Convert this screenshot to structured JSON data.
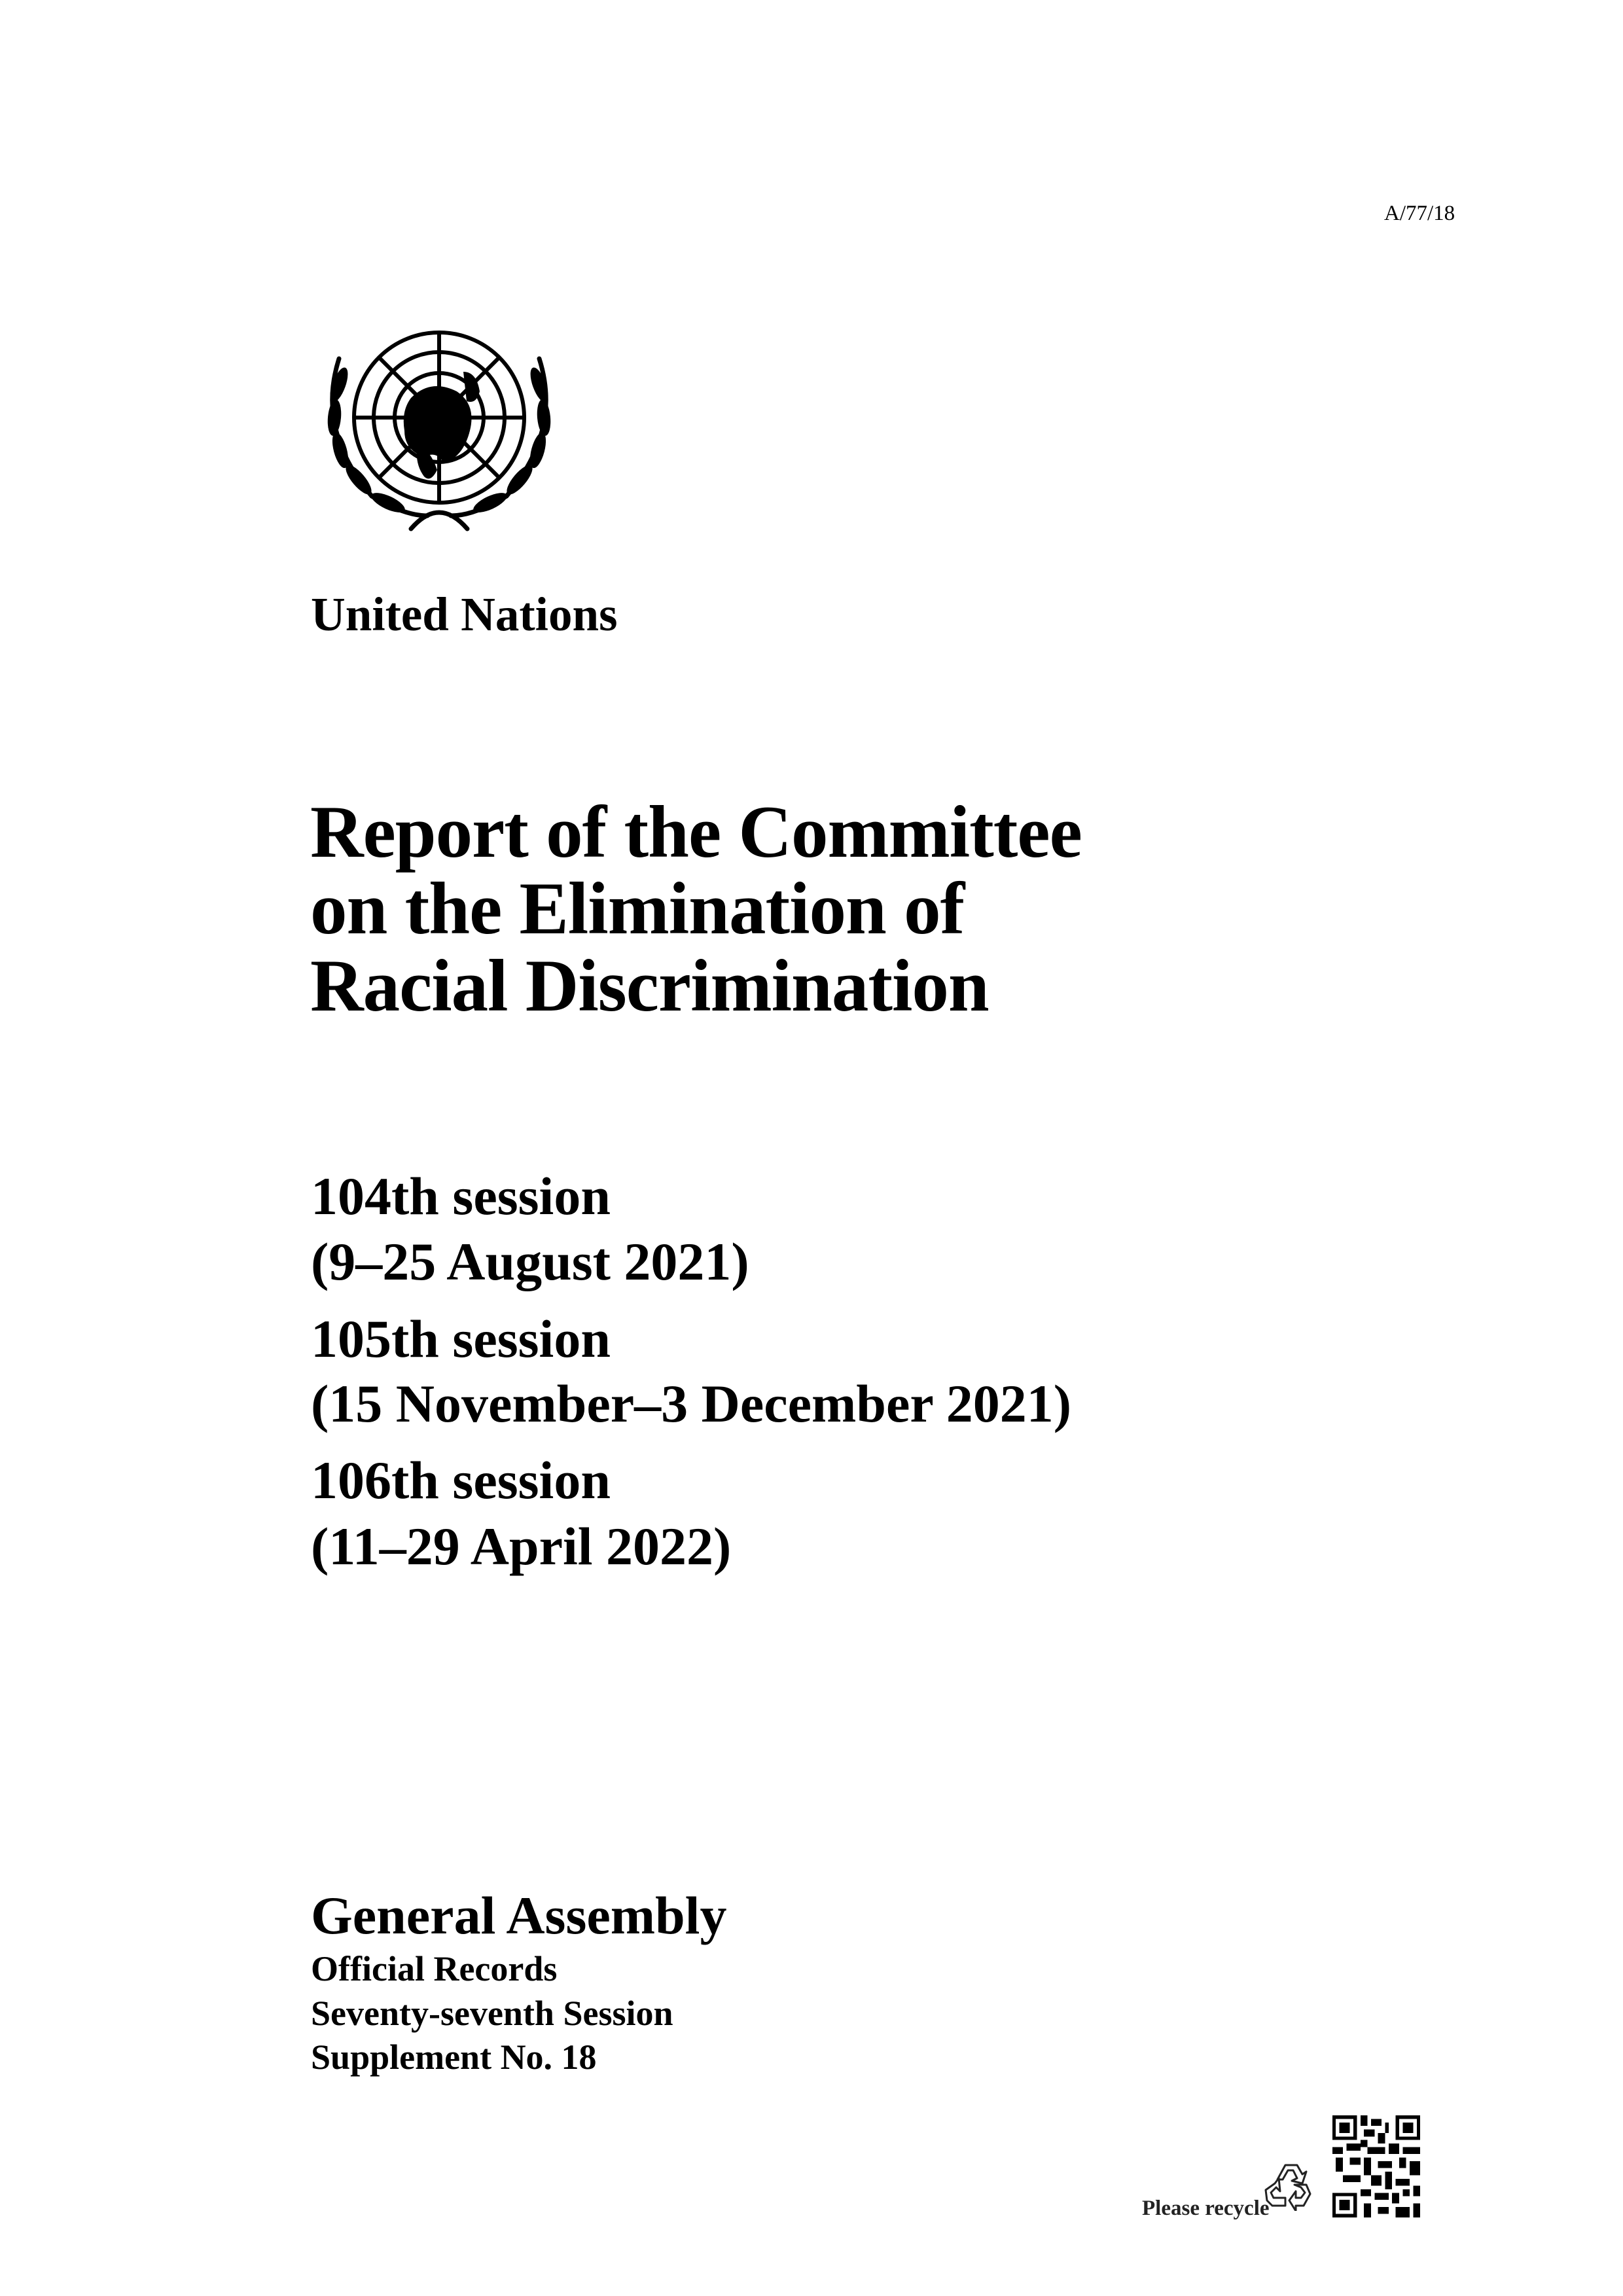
{
  "document_symbol": "A/77/18",
  "logo": {
    "icon": "un-emblem-icon"
  },
  "organization": "United Nations",
  "title_lines": [
    "Report of the Committee",
    "on the Elimination of",
    "Racial Discrimination"
  ],
  "sessions": [
    {
      "name": "104th session",
      "dates": "(9–25 August 2021)"
    },
    {
      "name": "105th session",
      "dates": "(15 November–3 December 2021)"
    },
    {
      "name": "106th session",
      "dates": "(11–29 April 2022)"
    }
  ],
  "body": "General Assembly",
  "records_lines": [
    "Official Records",
    "Seventy-seventh Session",
    "Supplement No. 18"
  ],
  "footer": {
    "recycle_label": "Please recycle",
    "recycle_icon": "recycle-icon",
    "qr_icon": "qr-code-icon"
  }
}
